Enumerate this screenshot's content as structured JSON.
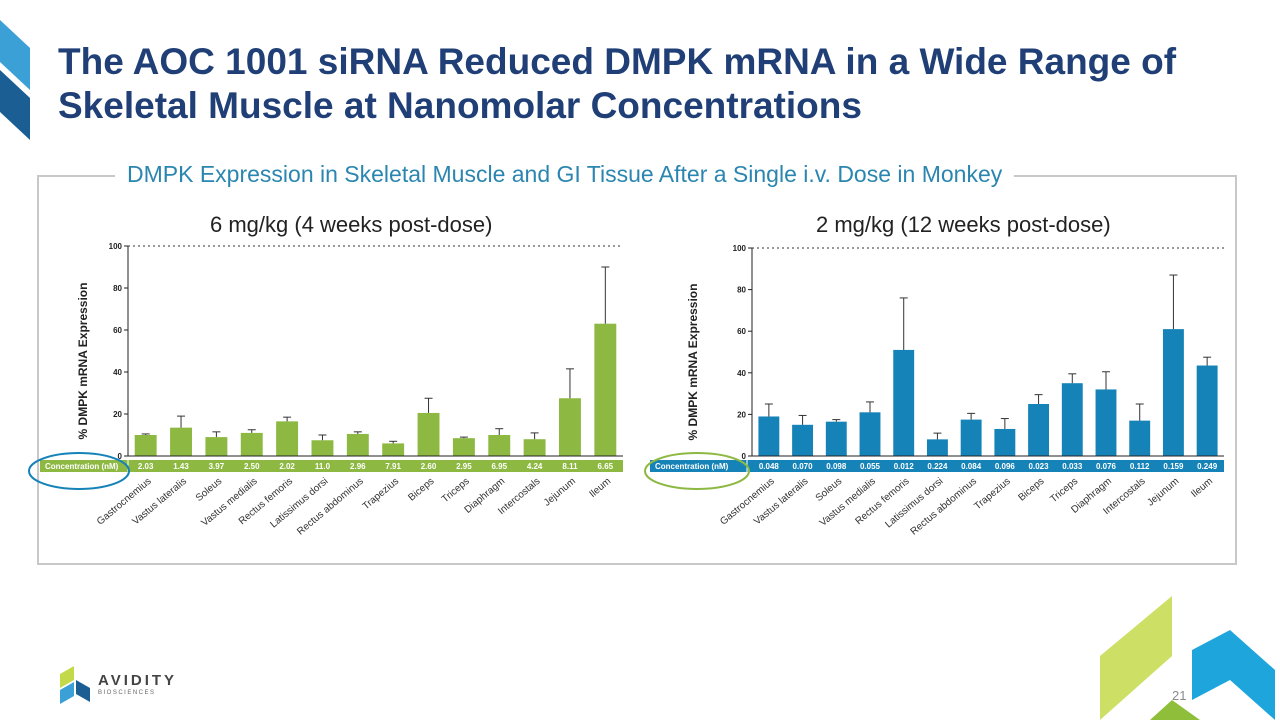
{
  "slide": {
    "title": "The AOC 1001 siRNA Reduced DMPK mRNA in a Wide Range of Skeletal Muscle at Nanomolar Concentrations",
    "subtitle": "DMPK Expression in Skeletal Muscle and GI Tissue After a Single i.v. Dose in Monkey",
    "page_number": "21",
    "logo": {
      "name": "AVIDITY",
      "sub": "BIOSCIENCES"
    },
    "colors": {
      "title": "#1f3f76",
      "subtitle": "#2a86b0",
      "bar_left": "#8db943",
      "bar_right": "#1683b8"
    }
  },
  "chart_data": [
    {
      "type": "bar",
      "title": "6 mg/kg (4 weeks post-dose)",
      "ylabel": "% DMPK mRNA Expression",
      "ylim": [
        0,
        100
      ],
      "yticks": [
        "0",
        "20",
        "40",
        "60",
        "80",
        "100"
      ],
      "reference_line": 100,
      "color": "#8db943",
      "categories": [
        "Gastrocnemius",
        "Vastus lateralis",
        "Soleus",
        "Vastus medialis",
        "Rectus femoris",
        "Latissimus dorsi",
        "Rectus abdominus",
        "Trapezius",
        "Biceps",
        "Triceps",
        "Diaphragm",
        "Intercostals",
        "Jejunum",
        "Ileum"
      ],
      "values": [
        10,
        13.5,
        9,
        11,
        16.5,
        7.5,
        10.5,
        6,
        20.5,
        8.5,
        10,
        8,
        27.5,
        63
      ],
      "errors": [
        0.5,
        5.5,
        2.5,
        1.5,
        2,
        2.5,
        1,
        1,
        7,
        0.5,
        3,
        3,
        14,
        27
      ],
      "concentration_label": "Concentration (nM)",
      "concentrations": [
        "2.03",
        "1.43",
        "3.97",
        "2.50",
        "2.02",
        "11.0",
        "2.96",
        "7.91",
        "2.60",
        "2.95",
        "6.95",
        "4.24",
        "8.11",
        "6.65"
      ]
    },
    {
      "type": "bar",
      "title": "2 mg/kg (12 weeks post-dose)",
      "ylabel": "% DMPK mRNA Expression",
      "ylim": [
        0,
        100
      ],
      "yticks": [
        "0",
        "20",
        "40",
        "60",
        "80",
        "100"
      ],
      "reference_line": 100,
      "color": "#1683b8",
      "categories": [
        "Gastrocnemius",
        "Vastus lateralis",
        "Soleus",
        "Vastus medialis",
        "Rectus femoris",
        "Latissimus dorsi",
        "Rectus abdominus",
        "Trapezius",
        "Biceps",
        "Triceps",
        "Diaphragm",
        "Intercostals",
        "Jejunum",
        "Ileum"
      ],
      "values": [
        19,
        15,
        16.5,
        21,
        51,
        8,
        17.5,
        13,
        25,
        35,
        32,
        17,
        61,
        43.5
      ],
      "errors": [
        6,
        4.5,
        1,
        5,
        25,
        3,
        3,
        5,
        4.5,
        4.5,
        8.5,
        8,
        26,
        4
      ],
      "concentration_label": "Concentration (nM)",
      "concentrations": [
        "0.048",
        "0.070",
        "0.098",
        "0.055",
        "0.012",
        "0.224",
        "0.084",
        "0.096",
        "0.023",
        "0.033",
        "0.076",
        "0.112",
        "0.159",
        "0.249"
      ]
    }
  ]
}
